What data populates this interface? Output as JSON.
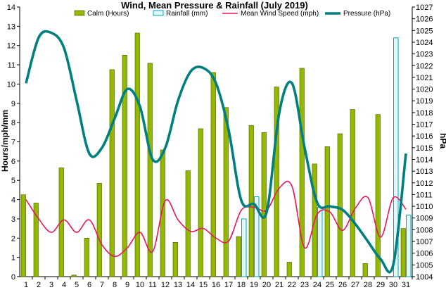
{
  "chart_data": {
    "type": "bar",
    "title": "Wind, Mean Pressure & Rainfall (July 2019)",
    "ylabel_left": "Hours/mph/mm",
    "ylabel_right": "hPa",
    "categories": [
      "1",
      "2",
      "3",
      "4",
      "5",
      "6",
      "7",
      "8",
      "9",
      "10",
      "11",
      "12",
      "13",
      "14",
      "15",
      "16",
      "17",
      "18",
      "19",
      "20",
      "21",
      "22",
      "23",
      "24",
      "25",
      "26",
      "27",
      "28",
      "29",
      "30",
      "31"
    ],
    "ylim_left": [
      0,
      14
    ],
    "ylim_right": [
      1004,
      1027
    ],
    "yticks_left": [
      "0",
      "1",
      "2",
      "3",
      "4",
      "5",
      "6",
      "7",
      "8",
      "9",
      "10",
      "11",
      "12",
      "13",
      "14"
    ],
    "yticks_right": [
      "1004",
      "1005",
      "1006",
      "1007",
      "1008",
      "1009",
      "1010",
      "1011",
      "1012",
      "1013",
      "1014",
      "1015",
      "1016",
      "1017",
      "1018",
      "1019",
      "1020",
      "1021",
      "1022",
      "1023",
      "1024",
      "1025",
      "1026",
      "1027"
    ],
    "legend_position": "top",
    "grid": false,
    "series": [
      {
        "name": "Calm (Hours)",
        "kind": "bar",
        "axis": "left",
        "color": "#94b800",
        "values": [
          4.25,
          3.82,
          0,
          5.65,
          0.08,
          2.0,
          4.85,
          10.75,
          11.5,
          12.65,
          11.08,
          6.58,
          1.78,
          5.5,
          7.68,
          10.6,
          8.78,
          2.08,
          7.85,
          7.48,
          9.85,
          0.75,
          10.82,
          5.85,
          6.75,
          7.42,
          8.68,
          0.68,
          8.42,
          0,
          2.5
        ]
      },
      {
        "name": "Rainfall (mm)",
        "kind": "bar",
        "axis": "left",
        "color": "#00a8b8",
        "values": [
          0,
          0,
          0,
          0,
          0,
          0,
          0,
          0,
          0,
          0,
          0,
          0,
          0,
          0,
          0,
          0,
          0,
          3.0,
          4.15,
          0,
          0,
          0,
          0,
          3.6,
          0,
          0,
          0,
          0,
          0,
          12.4,
          3.2
        ]
      },
      {
        "name": "Mean Wind Speed (mph)",
        "kind": "line",
        "axis": "left",
        "color": "#e8165f",
        "values": [
          4.0,
          3.0,
          2.3,
          2.95,
          2.3,
          2.95,
          1.65,
          1.05,
          1.5,
          2.3,
          1.3,
          3.95,
          2.95,
          2.35,
          2.5,
          2.0,
          1.85,
          3.45,
          3.6,
          3.45,
          4.6,
          4.7,
          1.5,
          3.25,
          3.35,
          2.4,
          3.55,
          4.1,
          2.05,
          4.1,
          3.5
        ]
      },
      {
        "name": "Pressure (hPa)",
        "kind": "line",
        "axis": "right",
        "color": "#007f7f",
        "values": [
          1020.5,
          1024.4,
          1024.8,
          1023.5,
          1019.0,
          1014.5,
          1015.0,
          1017.5,
          1020.0,
          1018.5,
          1014.0,
          1015.0,
          1019.0,
          1021.5,
          1021.8,
          1020.5,
          1016.5,
          1010.5,
          1010.2,
          1009.5,
          1018.0,
          1020.5,
          1015.0,
          1010.3,
          1010.0,
          1009.7,
          1008.5,
          1007.0,
          1005.5,
          1005.0,
          1014.5
        ]
      }
    ]
  }
}
